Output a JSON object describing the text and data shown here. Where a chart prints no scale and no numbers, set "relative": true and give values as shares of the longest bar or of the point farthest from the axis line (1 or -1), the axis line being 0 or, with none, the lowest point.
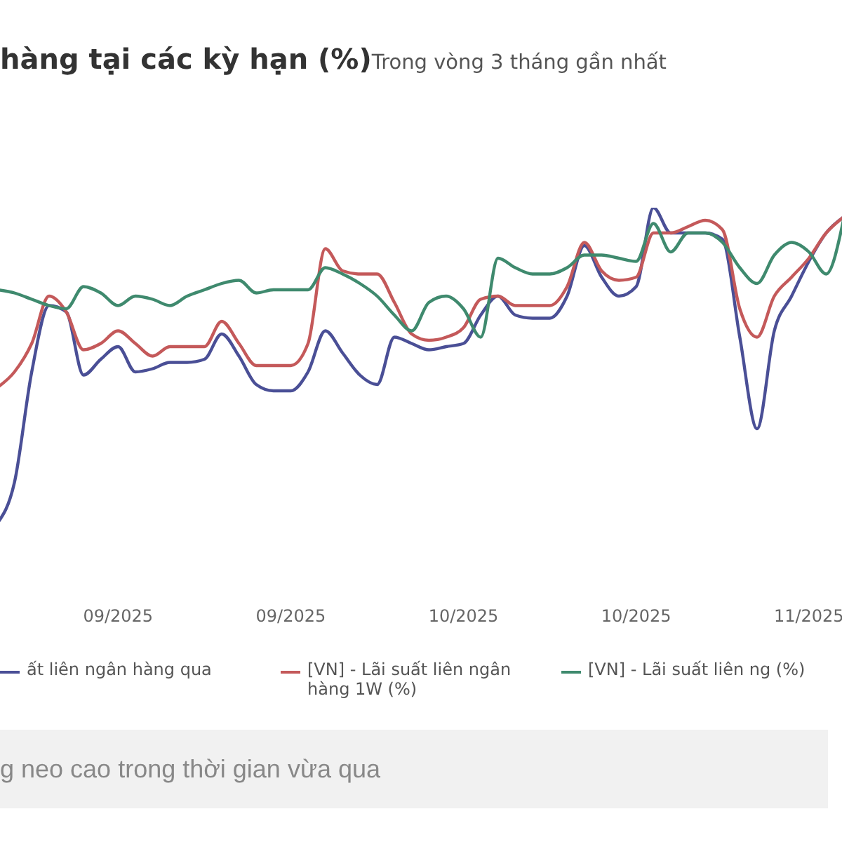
{
  "chart_data": {
    "type": "line",
    "title": "hàng tại các kỳ hạn (%)",
    "subtitle": "Trong vòng 3 tháng gần nhất",
    "relative": true,
    "legend": "bottom",
    "marker": "none",
    "line_style": "solid",
    "categories": [
      null,
      null,
      null,
      null,
      null,
      null,
      null,
      "09/2025",
      null,
      null,
      null,
      null,
      null,
      null,
      null,
      null,
      null,
      "09/2025",
      null,
      null,
      null,
      null,
      null,
      null,
      null,
      null,
      null,
      "10/2025",
      null,
      null,
      null,
      null,
      null,
      null,
      null,
      null,
      null,
      "10/2025",
      null,
      null,
      null,
      null,
      null,
      null,
      null,
      null,
      null,
      "11/2025",
      null,
      null
    ],
    "series": [
      {
        "name": "ất liên ngân hàng qua",
        "color": "#4a4f96",
        "values": [
          0,
          0.13,
          0.48,
          0.69,
          0.67,
          0.47,
          0.52,
          0.56,
          0.48,
          0.49,
          0.51,
          0.51,
          0.52,
          0.6,
          0.53,
          0.44,
          0.42,
          0.42,
          0.48,
          0.61,
          0.54,
          0.47,
          0.44,
          0.59,
          0.57,
          0.55,
          0.56,
          0.57,
          0.66,
          0.72,
          0.66,
          0.65,
          0.65,
          0.72,
          0.88,
          0.78,
          0.72,
          0.75,
          1,
          0.92,
          0.92,
          0.92,
          0.9,
          0.59,
          0.3,
          0.61,
          0.72,
          0.83,
          0.92,
          0.97
        ]
      },
      {
        "name": "[VN] - Lãi suất liên ngân hàng 1W (%)",
        "color": "#c4595a",
        "values": [
          0.43,
          0.48,
          0.57,
          0.72,
          0.67,
          0.55,
          0.57,
          0.61,
          0.57,
          0.53,
          0.56,
          0.56,
          0.56,
          0.64,
          0.57,
          0.5,
          0.5,
          0.5,
          0.57,
          0.87,
          0.8,
          0.79,
          0.79,
          0.7,
          0.6,
          0.58,
          0.59,
          0.62,
          0.71,
          0.72,
          0.69,
          0.69,
          0.69,
          0.75,
          0.89,
          0.8,
          0.77,
          0.78,
          0.92,
          0.92,
          0.94,
          0.96,
          0.93,
          0.68,
          0.59,
          0.72,
          0.78,
          0.84,
          0.92,
          0.97
        ]
      },
      {
        "name": "[VN] - Lãi suất liên ng (%)",
        "color": "#3f8a6e",
        "values": [
          0.74,
          0.73,
          0.71,
          0.69,
          0.68,
          0.75,
          0.73,
          0.69,
          0.72,
          0.71,
          0.69,
          0.72,
          0.74,
          0.76,
          0.77,
          0.73,
          0.74,
          0.74,
          0.74,
          0.81,
          0.79,
          0.76,
          0.72,
          0.66,
          0.61,
          0.7,
          0.72,
          0.68,
          0.59,
          0.84,
          0.81,
          0.79,
          0.79,
          0.81,
          0.85,
          0.85,
          0.84,
          0.83,
          0.95,
          0.86,
          0.92,
          0.92,
          0.89,
          0.81,
          0.76,
          0.85,
          0.89,
          0.86,
          0.79,
          0.96
        ]
      }
    ],
    "annotations": [
      "g neo cao trong thời gian vừa qua"
    ]
  }
}
